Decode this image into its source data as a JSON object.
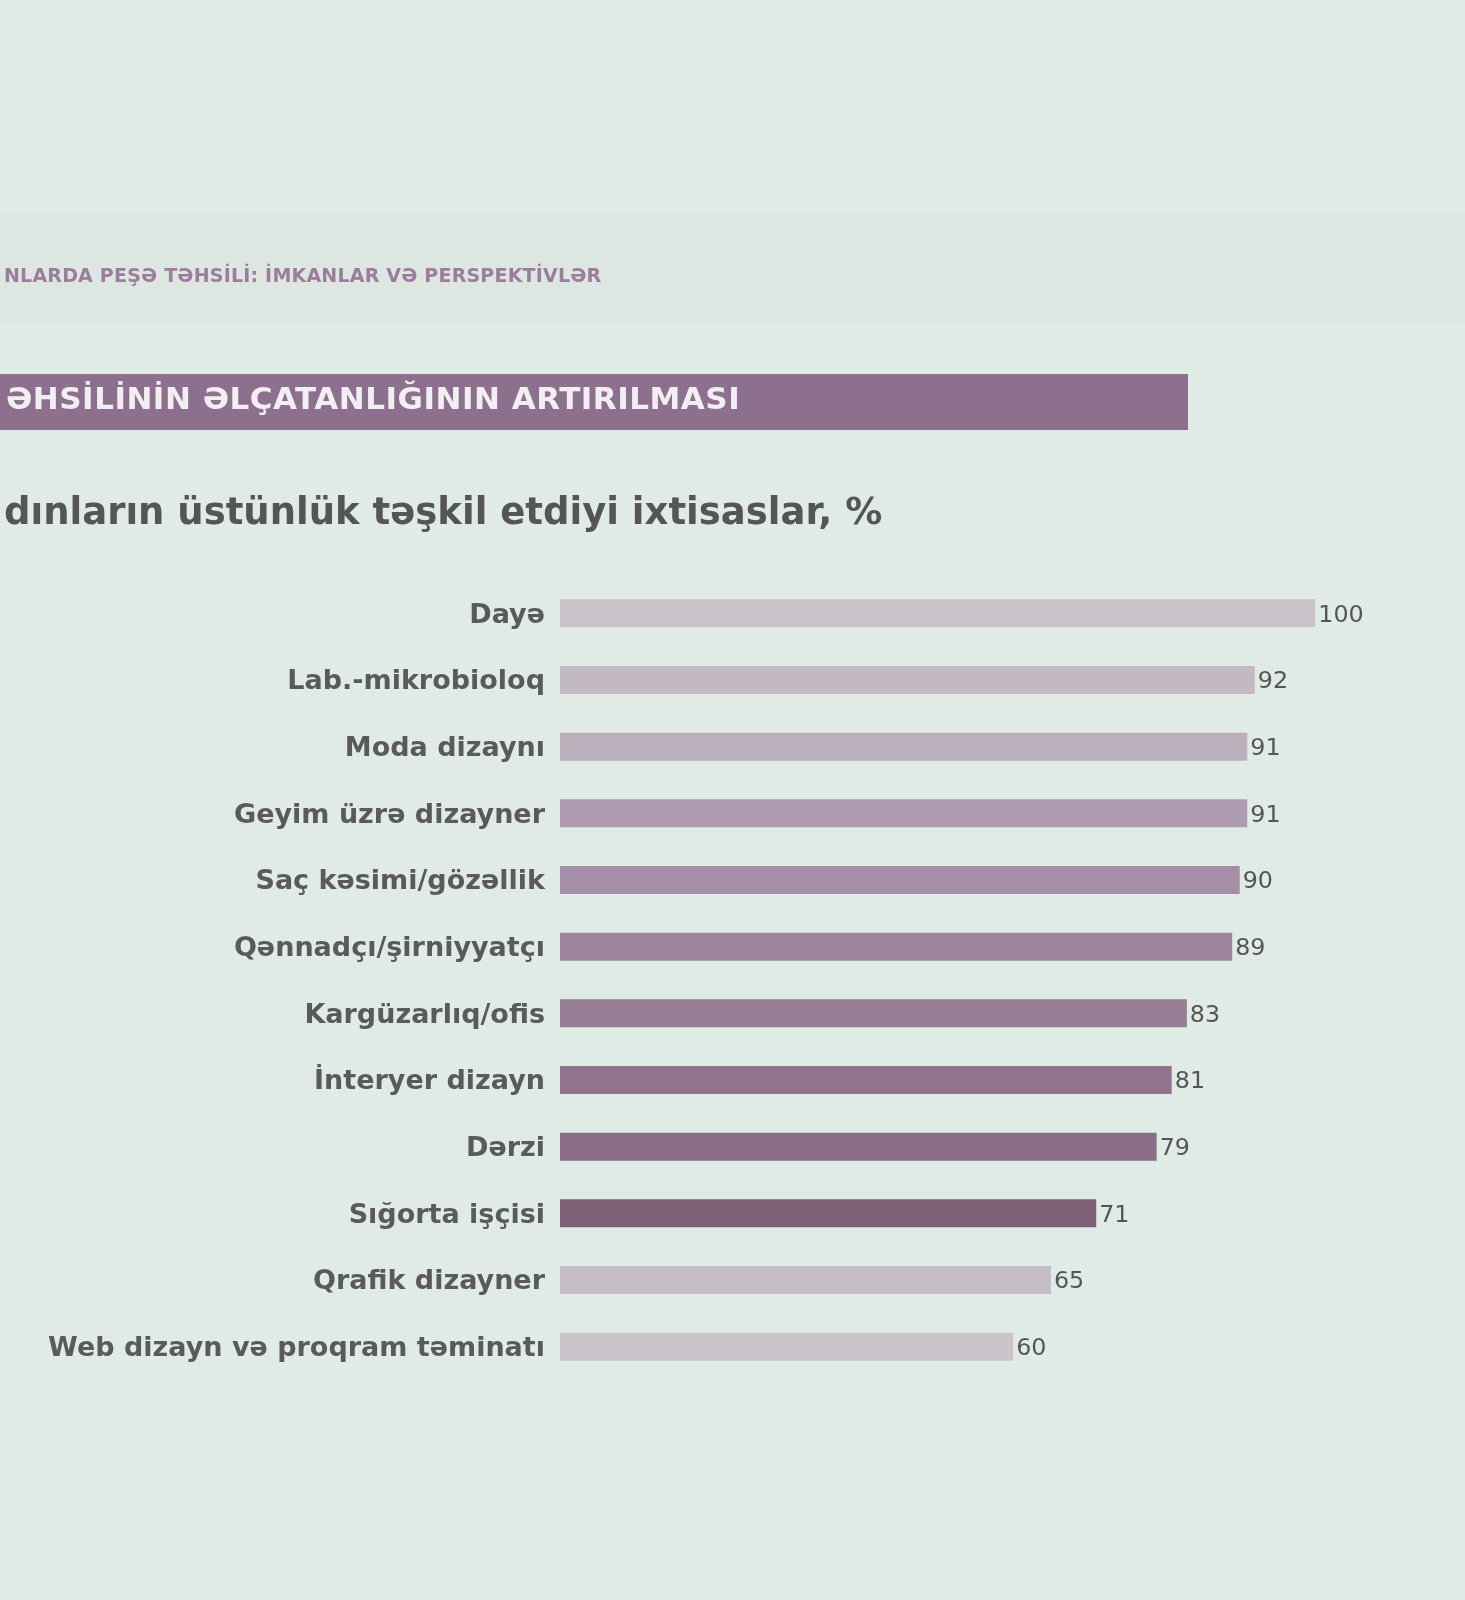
{
  "chart_data": {
    "type": "bar",
    "orientation": "horizontal",
    "title": "dınların üstünlük təşkil etdiyi ixtisaslar, %",
    "annotations": [
      "NLARDA PEŞƏ TƏHSİLİ: İMKANLAR VƏ PERSPEKTİVLƏR",
      "ƏHSİLİNİN ƏLÇATANLIĞININ ARTIRILMASI"
    ],
    "categories": [
      "Dayə",
      "Lab.-mikrobioloq",
      "Moda dizaynı",
      "Geyim üzrə dizayner",
      "Saç kəsimi/gözəllik",
      "Qənnadçı/şirniyyatçı",
      "Kargüzarlıq/ofis",
      "İnteryer dizayn",
      "Dərzi",
      "Sığorta işçisi",
      "Qrafik dizayner",
      "Web dizayn və proqram təminatı"
    ],
    "values": [
      100,
      92,
      91,
      91,
      90,
      89,
      83,
      81,
      79,
      71,
      65,
      60
    ],
    "colors": [
      "#c9c2c9",
      "#c2b9c3",
      "#bbafbc",
      "#ae9bb0",
      "#a58ea7",
      "#9d859f",
      "#977c96",
      "#917390",
      "#8b6c88",
      "#7f5f76",
      "#c6bcc5",
      "#ccc4cb"
    ],
    "data_labels": true,
    "tick_labels": "y"
  }
}
